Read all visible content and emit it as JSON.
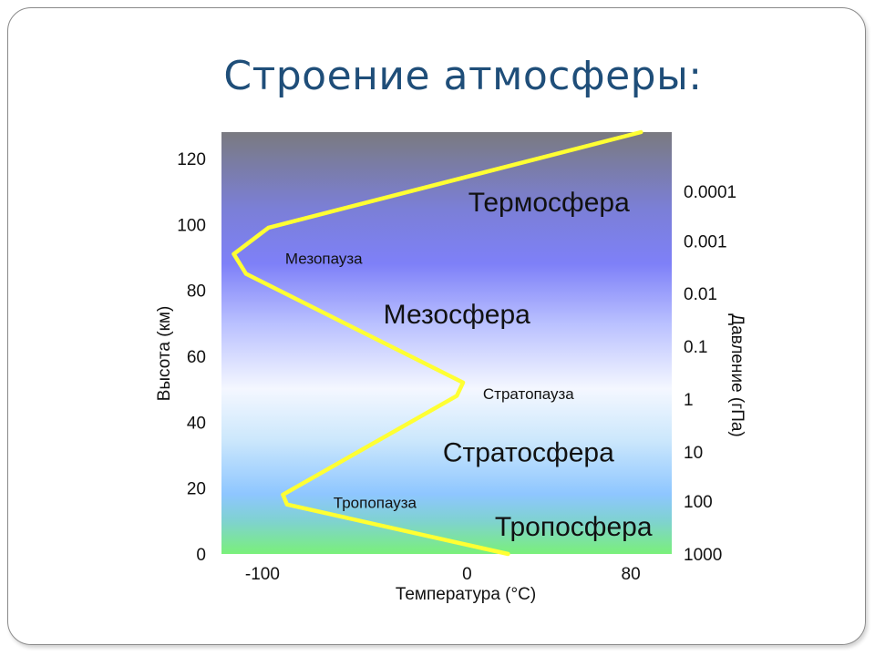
{
  "title": "Строение атмосферы:",
  "chart_data": {
    "type": "line",
    "xlabel": "Температура (°C)",
    "ylabel": "Высота (км)",
    "y2label": "Давление (гПа)",
    "xlim": [
      -120,
      100
    ],
    "ylim": [
      0,
      128
    ],
    "x_ticks": [
      -100,
      0,
      80
    ],
    "y_ticks": [
      0,
      20,
      40,
      60,
      80,
      100,
      120
    ],
    "pressure_ticks": [
      {
        "label": "1000",
        "height": 0
      },
      {
        "label": "100",
        "height": 16
      },
      {
        "label": "10",
        "height": 31
      },
      {
        "label": "1",
        "height": 47
      },
      {
        "label": "0.1",
        "height": 63
      },
      {
        "label": "0.01",
        "height": 79
      },
      {
        "label": "0.001",
        "height": 95
      },
      {
        "label": "0.0001",
        "height": 110
      }
    ],
    "series": [
      {
        "color": "#ffff33",
        "x": [
          20,
          -88,
          -90,
          -5,
          -2,
          -108,
          -114,
          -97,
          85
        ],
        "y": [
          0,
          15,
          18,
          48,
          52,
          85,
          91,
          99,
          128
        ]
      }
    ],
    "layers": [
      {
        "label": "Термосфера",
        "x": 40,
        "y": 104,
        "size": "big"
      },
      {
        "label": "Мезопауза",
        "x": -70,
        "y": 88,
        "size": "small"
      },
      {
        "label": "Мезосфера",
        "x": -5,
        "y": 70,
        "size": "big"
      },
      {
        "label": "Стратопауза",
        "x": 30,
        "y": 47,
        "size": "small"
      },
      {
        "label": "Стратосфера",
        "x": 30,
        "y": 28,
        "size": "big"
      },
      {
        "label": "Тропопауза",
        "x": -45,
        "y": 14,
        "size": "small"
      },
      {
        "label": "Тропосфера",
        "x": 52,
        "y": 5.5,
        "size": "big"
      }
    ],
    "background_gradient": [
      {
        "height": 128,
        "color": "#7a7a80"
      },
      {
        "height": 105,
        "color": "#7b7fd6"
      },
      {
        "height": 88,
        "color": "#7e80f8"
      },
      {
        "height": 70,
        "color": "#b9c0ff"
      },
      {
        "height": 50,
        "color": "#f4f7ff"
      },
      {
        "height": 35,
        "color": "#cde8fc"
      },
      {
        "height": 18,
        "color": "#8ec6ff"
      },
      {
        "height": 10,
        "color": "#7fd2d0"
      },
      {
        "height": 0,
        "color": "#7af07a"
      }
    ]
  }
}
